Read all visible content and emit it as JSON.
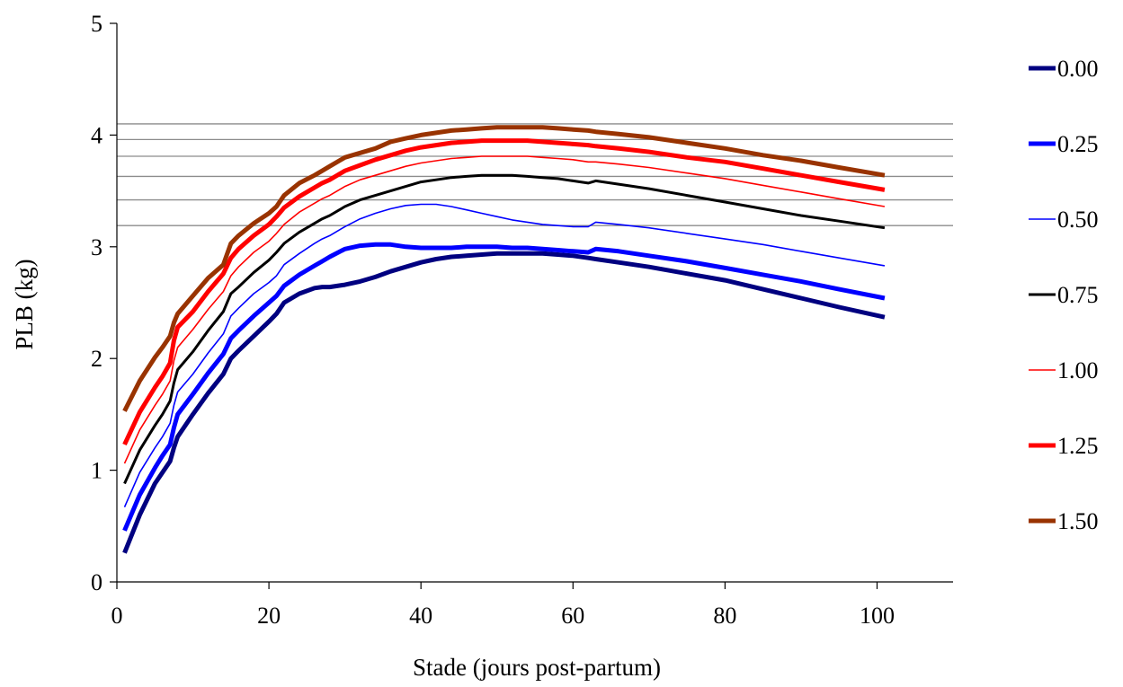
{
  "chart_data": {
    "type": "line",
    "xlabel": "Stade (jours post-partum)",
    "ylabel": "PLB (kg)",
    "xlim": [
      0,
      110
    ],
    "ylim": [
      0,
      5
    ],
    "xticks": [
      0,
      20,
      40,
      60,
      80,
      100
    ],
    "yticks": [
      0,
      1,
      2,
      3,
      4,
      5
    ],
    "legend_position": "right",
    "reference_lines": [
      3.19,
      3.42,
      3.63,
      3.81,
      3.96,
      4.1
    ],
    "x": [
      1,
      3,
      5,
      6,
      7,
      7.5,
      8,
      10,
      12,
      14,
      15,
      16,
      18,
      20,
      21,
      22,
      24,
      26,
      27,
      28,
      30,
      32,
      34,
      36,
      38,
      40,
      42,
      44,
      46,
      48,
      50,
      52,
      54,
      56,
      58,
      60,
      62,
      63,
      66,
      70,
      75,
      80,
      85,
      90,
      95,
      101
    ],
    "series": [
      {
        "name": "0.00",
        "color": "#000080",
        "width": 5,
        "values": [
          0.26,
          0.6,
          0.88,
          0.98,
          1.08,
          1.2,
          1.3,
          1.5,
          1.69,
          1.86,
          2.0,
          2.07,
          2.2,
          2.33,
          2.4,
          2.5,
          2.58,
          2.63,
          2.64,
          2.64,
          2.66,
          2.69,
          2.73,
          2.78,
          2.82,
          2.86,
          2.89,
          2.91,
          2.92,
          2.93,
          2.94,
          2.94,
          2.94,
          2.94,
          2.93,
          2.92,
          2.9,
          2.89,
          2.86,
          2.82,
          2.76,
          2.7,
          2.62,
          2.54,
          2.46,
          2.37
        ]
      },
      {
        "name": "0.25",
        "color": "#0000ff",
        "width": 5,
        "values": [
          0.46,
          0.78,
          1.02,
          1.13,
          1.23,
          1.38,
          1.5,
          1.68,
          1.87,
          2.04,
          2.18,
          2.25,
          2.38,
          2.5,
          2.56,
          2.65,
          2.75,
          2.83,
          2.87,
          2.91,
          2.98,
          3.01,
          3.02,
          3.02,
          3.0,
          2.99,
          2.99,
          2.99,
          3.0,
          3.0,
          3.0,
          2.99,
          2.99,
          2.98,
          2.97,
          2.96,
          2.95,
          2.98,
          2.96,
          2.92,
          2.87,
          2.81,
          2.75,
          2.69,
          2.62,
          2.54
        ]
      },
      {
        "name": "0.50",
        "color": "#0000ff",
        "width": 1.6,
        "values": [
          0.67,
          0.98,
          1.2,
          1.3,
          1.42,
          1.58,
          1.7,
          1.86,
          2.05,
          2.22,
          2.38,
          2.45,
          2.58,
          2.68,
          2.74,
          2.84,
          2.94,
          3.03,
          3.07,
          3.1,
          3.18,
          3.25,
          3.3,
          3.34,
          3.37,
          3.38,
          3.38,
          3.36,
          3.33,
          3.3,
          3.27,
          3.24,
          3.22,
          3.2,
          3.19,
          3.18,
          3.18,
          3.22,
          3.2,
          3.17,
          3.12,
          3.07,
          3.02,
          2.96,
          2.9,
          2.83
        ]
      },
      {
        "name": "0.75",
        "color": "#000000",
        "width": 3,
        "values": [
          0.88,
          1.18,
          1.4,
          1.5,
          1.62,
          1.78,
          1.9,
          2.06,
          2.25,
          2.42,
          2.58,
          2.64,
          2.77,
          2.88,
          2.95,
          3.03,
          3.13,
          3.21,
          3.25,
          3.28,
          3.36,
          3.42,
          3.46,
          3.5,
          3.54,
          3.58,
          3.6,
          3.62,
          3.63,
          3.64,
          3.64,
          3.64,
          3.63,
          3.62,
          3.61,
          3.59,
          3.57,
          3.59,
          3.56,
          3.52,
          3.46,
          3.4,
          3.34,
          3.28,
          3.23,
          3.17
        ]
      },
      {
        "name": "1.00",
        "color": "#ff0000",
        "width": 1.6,
        "values": [
          1.06,
          1.36,
          1.58,
          1.68,
          1.8,
          1.98,
          2.1,
          2.26,
          2.44,
          2.6,
          2.74,
          2.82,
          2.95,
          3.05,
          3.12,
          3.2,
          3.31,
          3.39,
          3.43,
          3.46,
          3.54,
          3.6,
          3.64,
          3.68,
          3.72,
          3.75,
          3.77,
          3.79,
          3.8,
          3.81,
          3.81,
          3.81,
          3.81,
          3.8,
          3.79,
          3.78,
          3.76,
          3.76,
          3.74,
          3.71,
          3.66,
          3.61,
          3.55,
          3.49,
          3.43,
          3.36
        ]
      },
      {
        "name": "1.25",
        "color": "#ff0000",
        "width": 5,
        "values": [
          1.23,
          1.52,
          1.74,
          1.84,
          1.96,
          2.16,
          2.28,
          2.42,
          2.6,
          2.76,
          2.9,
          2.98,
          3.1,
          3.2,
          3.27,
          3.35,
          3.45,
          3.53,
          3.57,
          3.6,
          3.68,
          3.73,
          3.78,
          3.82,
          3.86,
          3.89,
          3.91,
          3.93,
          3.94,
          3.95,
          3.95,
          3.95,
          3.95,
          3.94,
          3.93,
          3.92,
          3.91,
          3.9,
          3.88,
          3.85,
          3.8,
          3.76,
          3.7,
          3.64,
          3.58,
          3.51
        ]
      },
      {
        "name": "1.50",
        "color": "#993300",
        "width": 5,
        "values": [
          1.53,
          1.8,
          2.01,
          2.1,
          2.2,
          2.32,
          2.4,
          2.56,
          2.72,
          2.84,
          3.03,
          3.1,
          3.21,
          3.3,
          3.36,
          3.46,
          3.57,
          3.64,
          3.68,
          3.72,
          3.8,
          3.84,
          3.88,
          3.94,
          3.97,
          4.0,
          4.02,
          4.04,
          4.05,
          4.06,
          4.07,
          4.07,
          4.07,
          4.07,
          4.06,
          4.05,
          4.04,
          4.03,
          4.01,
          3.98,
          3.93,
          3.88,
          3.82,
          3.77,
          3.71,
          3.64
        ]
      }
    ]
  }
}
